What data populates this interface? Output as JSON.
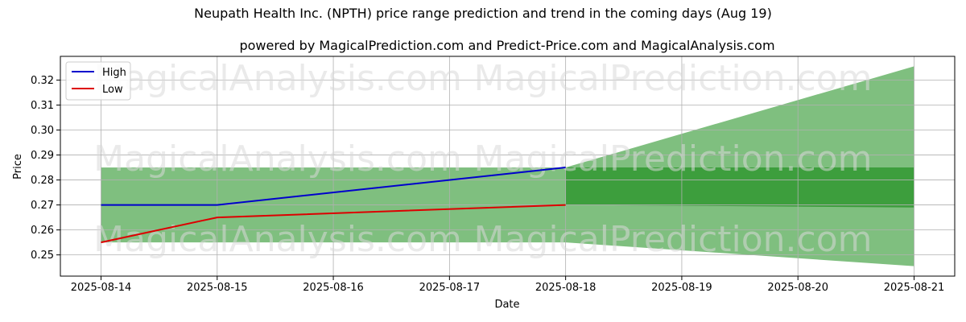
{
  "chart_data": {
    "type": "line",
    "title": "Neupath Health Inc. (NPTH) price range prediction and trend in the coming days (Aug 19)",
    "subtitle": "powered by MagicalPrediction.com and Predict-Price.com and MagicalAnalysis.com",
    "xlabel": "Date",
    "ylabel": "Price",
    "x_ticks": [
      "2025-08-14",
      "2025-08-15",
      "2025-08-16",
      "2025-08-17",
      "2025-08-18",
      "2025-08-19",
      "2025-08-20",
      "2025-08-21"
    ],
    "y_ticks": [
      0.25,
      0.26,
      0.27,
      0.28,
      0.29,
      0.3,
      0.31,
      0.32
    ],
    "y_tick_labels": [
      "0.25",
      "0.26",
      "0.27",
      "0.28",
      "0.29",
      "0.30",
      "0.31",
      "0.32"
    ],
    "xlim": [
      -0.35,
      7.35
    ],
    "ylim": [
      0.2415,
      0.3295
    ],
    "grid": true,
    "legend_position": "top-left",
    "series": [
      {
        "name": "High",
        "color": "#0000cc",
        "x": [
          0,
          1,
          4
        ],
        "values": [
          0.27,
          0.27,
          0.285
        ]
      },
      {
        "name": "Low",
        "color": "#dd0000",
        "x": [
          0,
          1,
          4
        ],
        "values": [
          0.255,
          0.265,
          0.27
        ]
      }
    ],
    "bands": [
      {
        "name": "historical-range",
        "color": "#7fbf7f",
        "x_start": 0,
        "x_end": 4,
        "low": 0.255,
        "high": 0.285
      },
      {
        "name": "prediction-outer",
        "color": "#7fbf7f",
        "x": [
          4,
          7
        ],
        "low": [
          0.255,
          0.2455
        ],
        "high": [
          0.285,
          0.3255
        ]
      },
      {
        "name": "prediction-inner",
        "color": "#3d9e3d",
        "x": [
          4,
          7
        ],
        "low": [
          0.27,
          0.269
        ],
        "high": [
          0.285,
          0.285
        ]
      }
    ],
    "watermarks": [
      "MagicalAnalysis.com",
      "MagicalPrediction.com"
    ]
  }
}
